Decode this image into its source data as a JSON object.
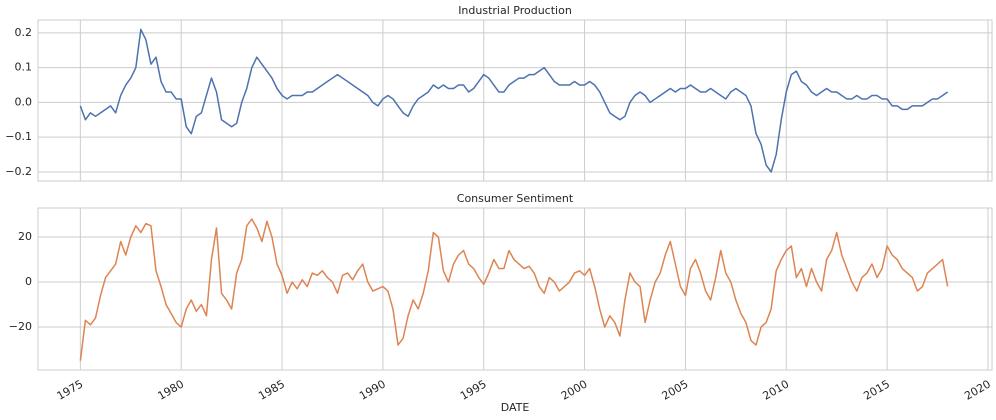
{
  "chart_data": [
    {
      "type": "line",
      "title": "Industrial Production",
      "x": [
        1975,
        1975.25,
        1975.5,
        1975.75,
        1976,
        1976.25,
        1976.5,
        1976.75,
        1977,
        1977.25,
        1977.5,
        1977.75,
        1978,
        1978.25,
        1978.5,
        1978.75,
        1979,
        1979.25,
        1979.5,
        1979.75,
        1980,
        1980.25,
        1980.5,
        1980.75,
        1981,
        1981.25,
        1981.5,
        1981.75,
        1982,
        1982.25,
        1982.5,
        1982.75,
        1983,
        1983.25,
        1983.5,
        1983.75,
        1984,
        1984.25,
        1984.5,
        1984.75,
        1985,
        1985.25,
        1985.5,
        1985.75,
        1986,
        1986.25,
        1986.5,
        1986.75,
        1987,
        1987.25,
        1987.5,
        1987.75,
        1988,
        1988.25,
        1988.5,
        1988.75,
        1989,
        1989.25,
        1989.5,
        1989.75,
        1990,
        1990.25,
        1990.5,
        1990.75,
        1991,
        1991.25,
        1991.5,
        1991.75,
        1992,
        1992.25,
        1992.5,
        1992.75,
        1993,
        1993.25,
        1993.5,
        1993.75,
        1994,
        1994.25,
        1994.5,
        1994.75,
        1995,
        1995.25,
        1995.5,
        1995.75,
        1996,
        1996.25,
        1996.5,
        1996.75,
        1997,
        1997.25,
        1997.5,
        1997.75,
        1998,
        1998.25,
        1998.5,
        1998.75,
        1999,
        1999.25,
        1999.5,
        1999.75,
        2000,
        2000.25,
        2000.5,
        2000.75,
        2001,
        2001.25,
        2001.5,
        2001.75,
        2002,
        2002.25,
        2002.5,
        2002.75,
        2003,
        2003.25,
        2003.5,
        2003.75,
        2004,
        2004.25,
        2004.5,
        2004.75,
        2005,
        2005.25,
        2005.5,
        2005.75,
        2006,
        2006.25,
        2006.5,
        2006.75,
        2007,
        2007.25,
        2007.5,
        2007.75,
        2008,
        2008.25,
        2008.5,
        2008.75,
        2009,
        2009.25,
        2009.5,
        2009.75,
        2010,
        2010.25,
        2010.5,
        2010.75,
        2011,
        2011.25,
        2011.5,
        2011.75,
        2012,
        2012.25,
        2012.5,
        2012.75,
        2013,
        2013.25,
        2013.5,
        2013.75,
        2014,
        2014.25,
        2014.5,
        2014.75,
        2015,
        2015.25,
        2015.5,
        2015.75,
        2016,
        2016.25,
        2016.5,
        2016.75,
        2017,
        2017.25,
        2017.5,
        2017.75,
        2018
      ],
      "series": [
        {
          "color": "#4c72b0",
          "values": [
            -0.01,
            -0.05,
            -0.03,
            -0.04,
            -0.03,
            -0.02,
            -0.01,
            -0.03,
            0.02,
            0.05,
            0.07,
            0.1,
            0.21,
            0.18,
            0.11,
            0.13,
            0.06,
            0.03,
            0.03,
            0.01,
            0.01,
            -0.07,
            -0.09,
            -0.04,
            -0.03,
            0.02,
            0.07,
            0.03,
            -0.05,
            -0.06,
            -0.07,
            -0.06,
            0.0,
            0.04,
            0.1,
            0.13,
            0.11,
            0.09,
            0.07,
            0.04,
            0.02,
            0.01,
            0.02,
            0.02,
            0.02,
            0.03,
            0.03,
            0.04,
            0.05,
            0.06,
            0.07,
            0.08,
            0.07,
            0.06,
            0.05,
            0.04,
            0.03,
            0.02,
            0.0,
            -0.01,
            0.01,
            0.02,
            0.01,
            -0.01,
            -0.03,
            -0.04,
            -0.01,
            0.01,
            0.02,
            0.03,
            0.05,
            0.04,
            0.05,
            0.04,
            0.04,
            0.05,
            0.05,
            0.03,
            0.04,
            0.06,
            0.08,
            0.07,
            0.05,
            0.03,
            0.03,
            0.05,
            0.06,
            0.07,
            0.07,
            0.08,
            0.08,
            0.09,
            0.1,
            0.08,
            0.06,
            0.05,
            0.05,
            0.05,
            0.06,
            0.05,
            0.05,
            0.06,
            0.05,
            0.03,
            0.0,
            -0.03,
            -0.04,
            -0.05,
            -0.04,
            0.0,
            0.02,
            0.03,
            0.02,
            0.0,
            0.01,
            0.02,
            0.03,
            0.04,
            0.03,
            0.04,
            0.04,
            0.05,
            0.04,
            0.03,
            0.03,
            0.04,
            0.03,
            0.02,
            0.01,
            0.03,
            0.04,
            0.03,
            0.02,
            -0.01,
            -0.09,
            -0.12,
            -0.18,
            -0.2,
            -0.15,
            -0.05,
            0.03,
            0.08,
            0.09,
            0.06,
            0.05,
            0.03,
            0.02,
            0.03,
            0.04,
            0.03,
            0.03,
            0.02,
            0.01,
            0.01,
            0.02,
            0.01,
            0.01,
            0.02,
            0.02,
            0.01,
            0.01,
            -0.01,
            -0.01,
            -0.02,
            -0.02,
            -0.01,
            -0.01,
            -0.01,
            0.0,
            0.01,
            0.01,
            0.02,
            0.03
          ]
        }
      ],
      "xlim": [
        1972.9,
        2020.2
      ],
      "xticks": [
        1975,
        1980,
        1985,
        1990,
        1995,
        2000,
        2005,
        2010,
        2015,
        2020
      ],
      "ylim": [
        -0.226,
        0.237
      ],
      "yticks": [
        {
          "value": -0.2,
          "label": "−0.2"
        },
        {
          "value": -0.1,
          "label": "−0.1"
        },
        {
          "value": 0,
          "label": "0.0"
        },
        0.1,
        0.2
      ],
      "grid": true
    },
    {
      "type": "line",
      "title": "Consumer Sentiment",
      "xlabel": "DATE",
      "x": [
        1975,
        1975.25,
        1975.5,
        1975.75,
        1976,
        1976.25,
        1976.5,
        1976.75,
        1977,
        1977.25,
        1977.5,
        1977.75,
        1978,
        1978.25,
        1978.5,
        1978.75,
        1979,
        1979.25,
        1979.5,
        1979.75,
        1980,
        1980.25,
        1980.5,
        1980.75,
        1981,
        1981.25,
        1981.5,
        1981.75,
        1982,
        1982.25,
        1982.5,
        1982.75,
        1983,
        1983.25,
        1983.5,
        1983.75,
        1984,
        1984.25,
        1984.5,
        1984.75,
        1985,
        1985.25,
        1985.5,
        1985.75,
        1986,
        1986.25,
        1986.5,
        1986.75,
        1987,
        1987.25,
        1987.5,
        1987.75,
        1988,
        1988.25,
        1988.5,
        1988.75,
        1989,
        1989.25,
        1989.5,
        1989.75,
        1990,
        1990.25,
        1990.5,
        1990.75,
        1991,
        1991.25,
        1991.5,
        1991.75,
        1992,
        1992.25,
        1992.5,
        1992.75,
        1993,
        1993.25,
        1993.5,
        1993.75,
        1994,
        1994.25,
        1994.5,
        1994.75,
        1995,
        1995.25,
        1995.5,
        1995.75,
        1996,
        1996.25,
        1996.5,
        1996.75,
        1997,
        1997.25,
        1997.5,
        1997.75,
        1998,
        1998.25,
        1998.5,
        1998.75,
        1999,
        1999.25,
        1999.5,
        1999.75,
        2000,
        2000.25,
        2000.5,
        2000.75,
        2001,
        2001.25,
        2001.5,
        2001.75,
        2002,
        2002.25,
        2002.5,
        2002.75,
        2003,
        2003.25,
        2003.5,
        2003.75,
        2004,
        2004.25,
        2004.5,
        2004.75,
        2005,
        2005.25,
        2005.5,
        2005.75,
        2006,
        2006.25,
        2006.5,
        2006.75,
        2007,
        2007.25,
        2007.5,
        2007.75,
        2008,
        2008.25,
        2008.5,
        2008.75,
        2009,
        2009.25,
        2009.5,
        2009.75,
        2010,
        2010.25,
        2010.5,
        2010.75,
        2011,
        2011.25,
        2011.5,
        2011.75,
        2012,
        2012.25,
        2012.5,
        2012.75,
        2013,
        2013.25,
        2013.5,
        2013.75,
        2014,
        2014.25,
        2014.5,
        2014.75,
        2015,
        2015.25,
        2015.5,
        2015.75,
        2016,
        2016.25,
        2016.5,
        2016.75,
        2017,
        2017.25,
        2017.5,
        2017.75,
        2018
      ],
      "series": [
        {
          "color": "#dd8452",
          "values": [
            -35,
            -17,
            -19,
            -16,
            -6,
            2,
            5,
            8,
            18,
            12,
            20,
            25,
            22,
            26,
            25,
            5,
            -2,
            -10,
            -14,
            -18,
            -20,
            -12,
            -8,
            -13,
            -10,
            -15,
            10,
            24,
            -5,
            -8,
            -12,
            4,
            10,
            25,
            28,
            24,
            18,
            27,
            20,
            8,
            3,
            -5,
            0,
            -3,
            1,
            -2,
            4,
            3,
            5,
            2,
            0,
            -5,
            3,
            4,
            1,
            5,
            8,
            0,
            -4,
            -3,
            -2,
            -4,
            -12,
            -28,
            -25,
            -15,
            -8,
            -12,
            -5,
            5,
            22,
            20,
            5,
            0,
            8,
            12,
            14,
            8,
            6,
            2,
            -1,
            4,
            10,
            6,
            6,
            14,
            10,
            8,
            6,
            7,
            4,
            -2,
            -5,
            2,
            0,
            -4,
            -2,
            0,
            4,
            5,
            3,
            6,
            -2,
            -12,
            -20,
            -15,
            -18,
            -24,
            -8,
            4,
            0,
            -2,
            -18,
            -8,
            0,
            4,
            12,
            18,
            8,
            -2,
            -6,
            6,
            10,
            4,
            -4,
            -8,
            2,
            14,
            4,
            0,
            -8,
            -14,
            -18,
            -26,
            -28,
            -20,
            -18,
            -12,
            5,
            10,
            14,
            16,
            2,
            6,
            -2,
            6,
            0,
            -4,
            10,
            14,
            22,
            12,
            6,
            0,
            -4,
            2,
            4,
            8,
            2,
            6,
            16,
            12,
            10,
            6,
            4,
            2,
            -4,
            -2,
            4,
            6,
            8,
            10,
            -2
          ]
        }
      ],
      "xlim": [
        1972.9,
        2020.2
      ],
      "xticks": [
        1975,
        1980,
        1985,
        1990,
        1995,
        2000,
        2005,
        2010,
        2015,
        2020
      ],
      "ylim": [
        -39.1,
        32.9
      ],
      "yticks": [
        {
          "value": -20,
          "label": "−20"
        },
        0,
        20
      ],
      "grid": true
    }
  ]
}
